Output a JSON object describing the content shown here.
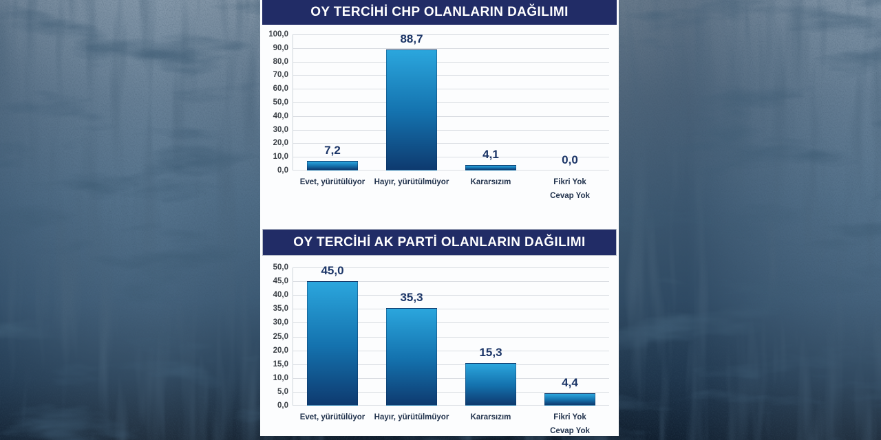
{
  "colors": {
    "panel_bg": "#fcfdfe",
    "title_bg": "#212c66",
    "title_text": "#ffffff",
    "bar_top": "#2ba6dd",
    "bar_mid": "#1472ae",
    "bar_bottom": "#0e3a6f",
    "value_label": "#1b3567",
    "tick_label": "#3a3f45",
    "category_label": "#22334d",
    "gridline": "#d9dde2",
    "background_top": "#8497a9",
    "background_bottom": "#0f1c2b"
  },
  "chart_data": [
    {
      "type": "bar",
      "title": "OY TERCİHİ CHP OLANLARIN DAĞILIMI",
      "categories": [
        "Evet, yürütülüyor",
        "Hayır, yürütülmüyor",
        "Kararsızım",
        "Fikri Yok\nCevap Yok"
      ],
      "values": [
        7.2,
        88.7,
        4.1,
        0.0
      ],
      "value_labels": [
        "7,2",
        "88,7",
        "4,1",
        "0,0"
      ],
      "ylim": [
        0,
        100
      ],
      "ytick_step": 10,
      "ytick_labels": [
        "100,0",
        "90,0",
        "80,0",
        "70,0",
        "60,0",
        "50,0",
        "40,0",
        "30,0",
        "20,0",
        "10,0",
        "0,0"
      ],
      "grid": true,
      "legend": false,
      "xlabel": "",
      "ylabel": ""
    },
    {
      "type": "bar",
      "title": "OY TERCİHİ AK PARTİ OLANLARIN DAĞILIMI",
      "categories": [
        "Evet, yürütülüyor",
        "Hayır, yürütülmüyor",
        "Kararsızım",
        "Fikri Yok\nCevap Yok"
      ],
      "values": [
        45.0,
        35.3,
        15.3,
        4.4
      ],
      "value_labels": [
        "45,0",
        "35,3",
        "15,3",
        "4,4"
      ],
      "ylim": [
        0,
        50
      ],
      "ytick_step": 5,
      "ytick_labels": [
        "50,0",
        "45,0",
        "40,0",
        "35,0",
        "30,0",
        "25,0",
        "20,0",
        "15,0",
        "10,0",
        "5,0",
        "0,0"
      ],
      "grid": true,
      "legend": false,
      "xlabel": "",
      "ylabel": ""
    }
  ]
}
